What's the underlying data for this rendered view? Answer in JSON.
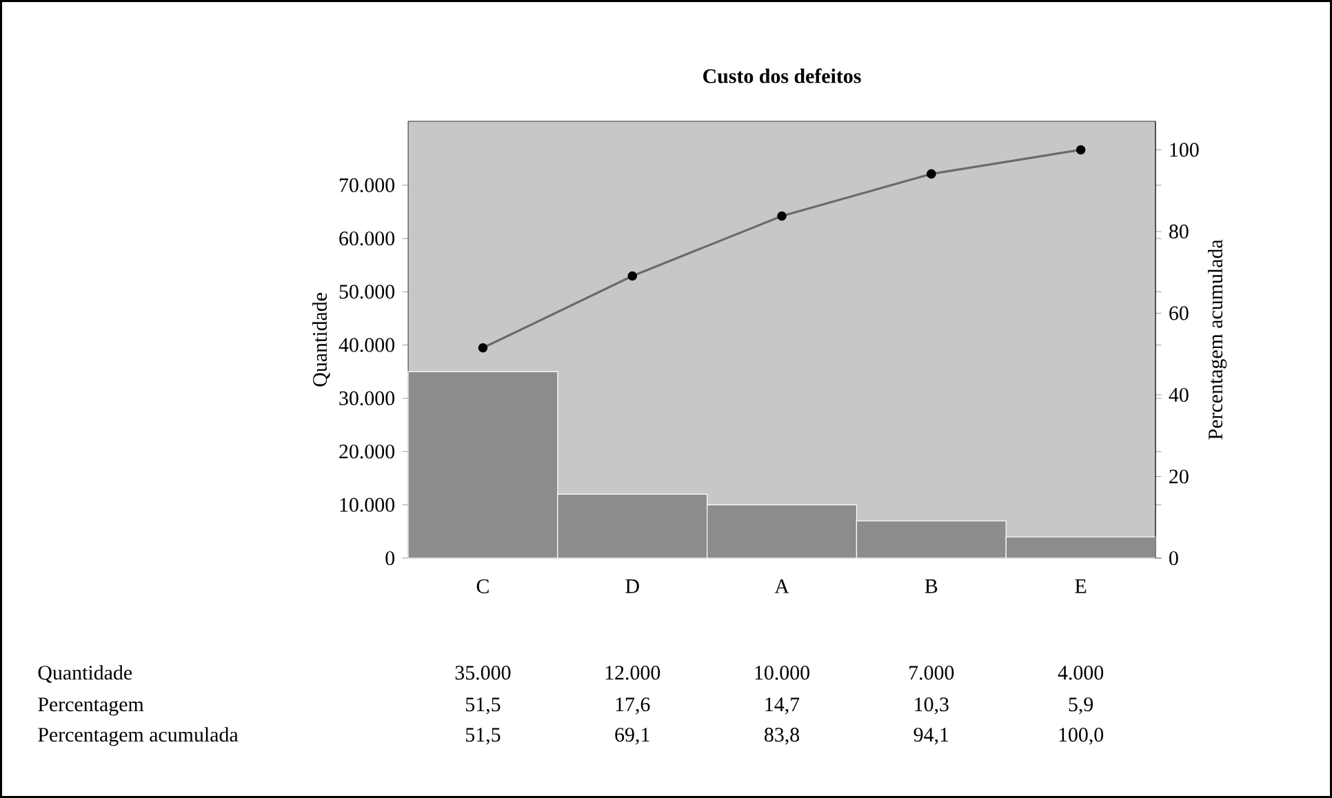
{
  "chart_data": {
    "type": "bar",
    "title": "Custo dos defeitos",
    "ylabel": "Quantidade",
    "y2label": "Percentagem acumulada",
    "categories": [
      "C",
      "D",
      "A",
      "B",
      "E"
    ],
    "series": [
      {
        "color": "#8c8c8c",
        "values": [
          35000,
          12000,
          10000,
          7000,
          4000
        ],
        "value_labels": [
          "35.000",
          "12.000",
          "10.000",
          "7.000",
          "4.000"
        ]
      },
      {
        "type": "line",
        "axis": "y2",
        "color": "#6a6a6a",
        "values": [
          51.5,
          69.1,
          83.8,
          94.1,
          100.0
        ],
        "value_labels": [
          "51,5",
          "69,1",
          "83,8",
          "94,1",
          "100,0"
        ]
      }
    ],
    "annotations": [
      "Quantidade",
      "Percentagem",
      "Percentagem acumulada",
      "51,5",
      "17,6",
      "14,7",
      "10,3",
      "5,9"
    ],
    "ylim": [
      0,
      82000
    ],
    "yticks": [
      {
        "value": 0,
        "label": "0"
      },
      {
        "value": 10000,
        "label": "10.000"
      },
      {
        "value": 20000,
        "label": "20.000"
      },
      {
        "value": 30000,
        "label": "30.000"
      },
      {
        "value": 40000,
        "label": "40.000"
      },
      {
        "value": 50000,
        "label": "50.000"
      },
      {
        "value": 60000,
        "label": "60.000"
      },
      {
        "value": 70000,
        "label": "70.000"
      }
    ],
    "y2lim": [
      0,
      107
    ],
    "y2ticks": [
      0,
      20,
      40,
      60,
      80,
      100
    ],
    "marker": "circle",
    "line_style": "solid",
    "grid": false
  }
}
